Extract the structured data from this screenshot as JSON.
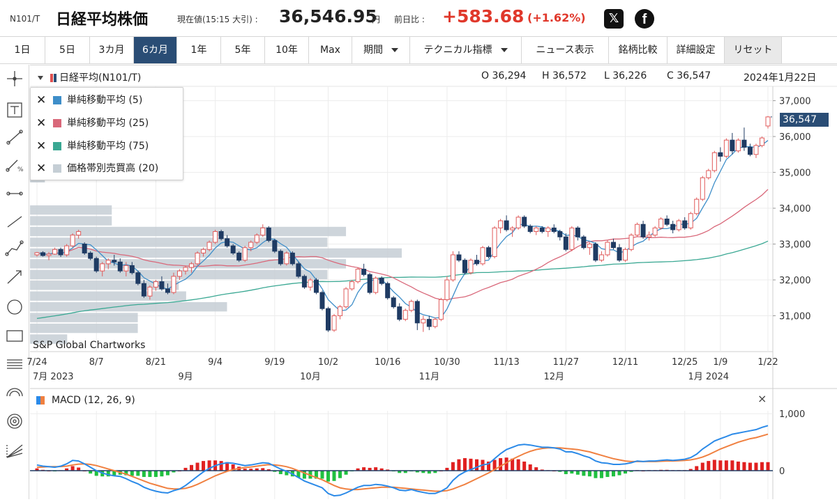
{
  "header": {
    "ticker": "N101/T",
    "title": "日経平均株価",
    "current_label": "現在値(15:15 大引) :",
    "current_value": "36,546.95",
    "current_unit": "円",
    "change_label": "前日比 :",
    "change_value": "+583.68",
    "change_pct": "(+1.62%)",
    "x_icon": "x-logo-icon",
    "fb_icon": "facebook-icon"
  },
  "toolbar": {
    "ranges": [
      "1日",
      "5日",
      "3カ月",
      "6カ月",
      "1年",
      "5年",
      "10年",
      "Max"
    ],
    "active": "6カ月",
    "period_label": "期間",
    "technical_label": "テクニカル指標",
    "news_label": "ニュース表示",
    "compare_label": "銘柄比較",
    "settings_label": "詳細設定",
    "reset_label": "リセット"
  },
  "tools": [
    "crosshair-icon",
    "text-tool-icon",
    "trendline-icon",
    "percent-line-icon",
    "horizontal-ray-icon",
    "line-segment-icon",
    "multi-point-line-icon",
    "arrow-line-icon",
    "circle-icon",
    "rectangle-icon",
    "fibonacci-icon",
    "arc-icon",
    "target-icon",
    "fan-icon"
  ],
  "chart": {
    "series_title": "日経平均(N101/T)",
    "ohlc": {
      "o": "O 36,294",
      "h": "H 36,572",
      "l": "L 36,226",
      "c": "C 36,547"
    },
    "date": "2024年1月22日",
    "credit": "S&P Global Chartworks",
    "last_price_tag": "36,547",
    "legend": [
      {
        "label": "単純移動平均 (5)",
        "color": "#3e8ec9"
      },
      {
        "label": "単純移動平均 (25)",
        "color": "#d9687a"
      },
      {
        "label": "単純移動平均 (75)",
        "color": "#3aa893"
      },
      {
        "label": "価格帯別売買高 (20)",
        "color": "#c5ced5"
      }
    ],
    "macd_title": "MACD (12, 26, 9)",
    "macd_close": "×"
  },
  "chart_data": {
    "type": "candlestick",
    "x_tick_labels": [
      "7/24",
      "8/7",
      "8/21",
      "9/4",
      "9/19",
      "10/2",
      "10/16",
      "10/30",
      "11/13",
      "11/27",
      "12/11",
      "12/25",
      "1/9",
      "1/22"
    ],
    "month_labels": [
      "7月 2023",
      "9月",
      "10月",
      "11月",
      "12月",
      "1月 2024"
    ],
    "y_ticks": [
      31000,
      32000,
      33000,
      34000,
      35000,
      36000,
      37000
    ],
    "y_tick_labels": [
      "31,000",
      "32,000",
      "33,000",
      "34,000",
      "35,000",
      "36,000",
      "37,000"
    ],
    "ylim": [
      30000,
      37400
    ],
    "last_close": 36547,
    "candles_count": 124,
    "candles_note": "OHLC values approximated from the chart",
    "candles": [
      [
        32700,
        32780,
        32650,
        32760
      ],
      [
        32760,
        32800,
        32650,
        32680
      ],
      [
        32680,
        32780,
        32550,
        32720
      ],
      [
        32720,
        32900,
        32700,
        32850
      ],
      [
        32850,
        32900,
        32640,
        32700
      ],
      [
        32700,
        33000,
        32650,
        32950
      ],
      [
        32950,
        33300,
        32900,
        33250
      ],
      [
        33250,
        33400,
        33150,
        33350
      ],
      [
        33000,
        33050,
        32700,
        32750
      ],
      [
        32750,
        32800,
        32550,
        32600
      ],
      [
        32600,
        32650,
        32200,
        32250
      ],
      [
        32250,
        32500,
        32100,
        32450
      ],
      [
        32450,
        32600,
        32300,
        32550
      ],
      [
        32550,
        32700,
        32400,
        32500
      ],
      [
        32500,
        32600,
        32200,
        32250
      ],
      [
        32250,
        32500,
        32100,
        32400
      ],
      [
        32400,
        32500,
        32150,
        32200
      ],
      [
        32200,
        32250,
        31850,
        31900
      ],
      [
        31900,
        32000,
        31500,
        31550
      ],
      [
        31550,
        31850,
        31450,
        31800
      ],
      [
        31800,
        32000,
        31700,
        31950
      ],
      [
        31950,
        32100,
        31700,
        31750
      ],
      [
        31750,
        31900,
        31600,
        31650
      ],
      [
        31650,
        32200,
        31600,
        32100
      ],
      [
        32100,
        32300,
        32000,
        32250
      ],
      [
        32250,
        32400,
        32150,
        32350
      ],
      [
        32350,
        32500,
        32200,
        32450
      ],
      [
        32450,
        32800,
        32400,
        32750
      ],
      [
        32750,
        32900,
        32650,
        32850
      ],
      [
        32850,
        33100,
        32800,
        33050
      ],
      [
        33050,
        33400,
        33000,
        33350
      ],
      [
        33350,
        33400,
        33100,
        33150
      ],
      [
        33150,
        33250,
        32900,
        32950
      ],
      [
        32950,
        33000,
        32700,
        32750
      ],
      [
        32750,
        32800,
        32500,
        32550
      ],
      [
        32550,
        32950,
        32500,
        32900
      ],
      [
        32900,
        33100,
        32800,
        33050
      ],
      [
        33050,
        33300,
        33000,
        33250
      ],
      [
        33250,
        33550,
        33200,
        33450
      ],
      [
        33450,
        33500,
        33050,
        33100
      ],
      [
        33100,
        33150,
        32750,
        32800
      ],
      [
        32800,
        32850,
        32400,
        32450
      ],
      [
        32450,
        32800,
        32400,
        32750
      ],
      [
        32750,
        32800,
        32400,
        32450
      ],
      [
        32450,
        32500,
        32050,
        32100
      ],
      [
        32100,
        32150,
        31750,
        31800
      ],
      [
        31800,
        32050,
        31700,
        32000
      ],
      [
        32000,
        32050,
        31600,
        31650
      ],
      [
        31650,
        31700,
        31150,
        31200
      ],
      [
        31200,
        31250,
        30550,
        30600
      ],
      [
        30600,
        31050,
        30550,
        31000
      ],
      [
        31000,
        31300,
        30900,
        31250
      ],
      [
        31250,
        31800,
        31200,
        31750
      ],
      [
        31750,
        32000,
        31700,
        31950
      ],
      [
        31950,
        32350,
        31900,
        32300
      ],
      [
        32300,
        32450,
        32100,
        32150
      ],
      [
        32150,
        32200,
        31600,
        31650
      ],
      [
        31650,
        32100,
        31600,
        32050
      ],
      [
        32050,
        32100,
        31850,
        31900
      ],
      [
        31900,
        31950,
        31450,
        31500
      ],
      [
        31500,
        31550,
        31200,
        31250
      ],
      [
        31250,
        31350,
        30850,
        30900
      ],
      [
        30900,
        31200,
        30850,
        31150
      ],
      [
        31150,
        31450,
        31100,
        31400
      ],
      [
        31400,
        31450,
        30600,
        30800
      ],
      [
        30800,
        31000,
        30550,
        30900
      ],
      [
        30900,
        31000,
        30600,
        30700
      ],
      [
        30700,
        30950,
        30650,
        30900
      ],
      [
        30900,
        31500,
        30850,
        31450
      ],
      [
        31450,
        32100,
        31400,
        32000
      ],
      [
        32000,
        32800,
        31950,
        32700
      ],
      [
        32700,
        32800,
        32500,
        32550
      ],
      [
        32550,
        32600,
        32150,
        32200
      ],
      [
        32200,
        32600,
        32150,
        32550
      ],
      [
        32550,
        32700,
        32400,
        32450
      ],
      [
        32450,
        32950,
        32400,
        32900
      ],
      [
        32900,
        32950,
        32600,
        32650
      ],
      [
        32650,
        33500,
        32600,
        33450
      ],
      [
        33450,
        33700,
        33300,
        33650
      ],
      [
        33650,
        33800,
        33350,
        33400
      ],
      [
        33400,
        33500,
        33200,
        33450
      ],
      [
        33450,
        33800,
        33400,
        33750
      ],
      [
        33750,
        33800,
        33450,
        33500
      ],
      [
        33500,
        33550,
        33300,
        33350
      ],
      [
        33350,
        33500,
        33250,
        33450
      ],
      [
        33450,
        33500,
        33300,
        33350
      ],
      [
        33350,
        33500,
        33200,
        33450
      ],
      [
        33450,
        33550,
        33300,
        33350
      ],
      [
        33350,
        33400,
        33100,
        33200
      ],
      [
        33200,
        33300,
        32800,
        32850
      ],
      [
        32850,
        33500,
        32800,
        33450
      ],
      [
        33450,
        33500,
        33100,
        33200
      ],
      [
        33200,
        33250,
        32850,
        32900
      ],
      [
        32900,
        33050,
        32700,
        33000
      ],
      [
        33000,
        33050,
        32500,
        32550
      ],
      [
        32550,
        32800,
        32500,
        32700
      ],
      [
        32700,
        33100,
        32650,
        33050
      ],
      [
        33050,
        33150,
        32850,
        32900
      ],
      [
        32900,
        33000,
        32500,
        32550
      ],
      [
        32550,
        32900,
        32500,
        32850
      ],
      [
        32850,
        33300,
        32800,
        33250
      ],
      [
        33250,
        33600,
        33200,
        33550
      ],
      [
        33550,
        33650,
        33150,
        33200
      ],
      [
        33200,
        33350,
        33100,
        33250
      ],
      [
        33250,
        33500,
        33200,
        33450
      ],
      [
        33450,
        33750,
        33400,
        33700
      ],
      [
        33700,
        33800,
        33500,
        33550
      ],
      [
        33550,
        33650,
        33300,
        33400
      ],
      [
        33400,
        33700,
        33350,
        33650
      ],
      [
        33650,
        33750,
        33400,
        33450
      ],
      [
        33450,
        33900,
        33400,
        33850
      ],
      [
        33850,
        34300,
        33800,
        34250
      ],
      [
        34250,
        34900,
        34200,
        34850
      ],
      [
        34850,
        35100,
        34800,
        35050
      ],
      [
        35050,
        35600,
        35000,
        35550
      ],
      [
        35550,
        35700,
        35300,
        35450
      ],
      [
        35450,
        35950,
        35400,
        35900
      ],
      [
        35900,
        36100,
        35500,
        35600
      ],
      [
        35600,
        35950,
        35550,
        35900
      ],
      [
        35900,
        36250,
        35600,
        35700
      ],
      [
        35700,
        35800,
        35450,
        35500
      ],
      [
        35500,
        35800,
        35400,
        35750
      ],
      [
        35750,
        36000,
        35700,
        35960
      ],
      [
        36294,
        36572,
        36226,
        36547
      ]
    ],
    "sma5_color": "#3e8ec9",
    "sma25_color": "#d9687a",
    "sma75_color": "#3aa893",
    "volume_by_price": [
      {
        "price_from": 30200,
        "price_to": 30500,
        "volume": 0.1
      },
      {
        "price_from": 30500,
        "price_to": 30800,
        "volume": 0.29
      },
      {
        "price_from": 30800,
        "price_to": 31100,
        "volume": 0.29
      },
      {
        "price_from": 31100,
        "price_to": 31400,
        "volume": 0.53
      },
      {
        "price_from": 31400,
        "price_to": 31700,
        "volume": 0.42
      },
      {
        "price_from": 31700,
        "price_to": 32000,
        "volume": 0.4
      },
      {
        "price_from": 32000,
        "price_to": 32300,
        "volume": 0.8
      },
      {
        "price_from": 32300,
        "price_to": 32600,
        "volume": 0.85
      },
      {
        "price_from": 32600,
        "price_to": 32900,
        "volume": 1.0
      },
      {
        "price_from": 32900,
        "price_to": 33200,
        "volume": 0.8
      },
      {
        "price_from": 33200,
        "price_to": 33500,
        "volume": 0.85
      },
      {
        "price_from": 33500,
        "price_to": 33800,
        "volume": 0.22
      },
      {
        "price_from": 33800,
        "price_to": 34100,
        "volume": 0.22
      },
      {
        "price_from": 34700,
        "price_to": 35000,
        "volume": 0.04
      }
    ],
    "macd": {
      "ylim": [
        -500,
        1050
      ],
      "y_ticks": [
        0,
        1000
      ],
      "y_tick_labels": [
        "0",
        "1,000"
      ],
      "macd_color": "#2b8ae8",
      "signal_color": "#f08040",
      "hist_pos_color": "#e02020",
      "hist_neg_color": "#20c040",
      "macd_line": [
        100,
        80,
        70,
        60,
        80,
        120,
        180,
        170,
        120,
        60,
        0,
        -40,
        -70,
        -90,
        -100,
        -140,
        -190,
        -230,
        -290,
        -330,
        -360,
        -380,
        -390,
        -350,
        -320,
        -260,
        -180,
        -100,
        -20,
        40,
        90,
        120,
        140,
        130,
        110,
        90,
        100,
        120,
        140,
        130,
        80,
        30,
        -10,
        -60,
        -120,
        -180,
        -220,
        -260,
        -300,
        -400,
        -440,
        -430,
        -390,
        -340,
        -290,
        -260,
        -260,
        -240,
        -250,
        -270,
        -300,
        -340,
        -350,
        -330,
        -360,
        -380,
        -400,
        -400,
        -360,
        -300,
        -170,
        -80,
        -20,
        20,
        60,
        100,
        120,
        210,
        300,
        370,
        410,
        450,
        460,
        450,
        430,
        410,
        410,
        400,
        380,
        330,
        330,
        300,
        260,
        230,
        170,
        140,
        130,
        110,
        110,
        120,
        140,
        170,
        160,
        170,
        170,
        180,
        190,
        180,
        190,
        200,
        230,
        290,
        380,
        450,
        520,
        560,
        600,
        640,
        660,
        680,
        700,
        720,
        760,
        790
      ],
      "signal_line": [
        60,
        65,
        70,
        70,
        72,
        80,
        100,
        115,
        120,
        110,
        90,
        60,
        30,
        0,
        -30,
        -60,
        -100,
        -140,
        -180,
        -220,
        -250,
        -280,
        -310,
        -320,
        -320,
        -310,
        -280,
        -240,
        -190,
        -140,
        -90,
        -50,
        -10,
        20,
        40,
        55,
        65,
        80,
        95,
        105,
        100,
        90,
        70,
        40,
        0,
        -40,
        -80,
        -120,
        -160,
        -210,
        -260,
        -300,
        -320,
        -330,
        -330,
        -320,
        -310,
        -300,
        -290,
        -290,
        -290,
        -300,
        -310,
        -320,
        -330,
        -340,
        -350,
        -360,
        -360,
        -350,
        -320,
        -280,
        -240,
        -190,
        -140,
        -90,
        -40,
        20,
        80,
        140,
        200,
        250,
        300,
        340,
        370,
        390,
        400,
        400,
        400,
        390,
        380,
        370,
        350,
        330,
        300,
        270,
        240,
        210,
        190,
        170,
        160,
        160,
        160,
        160,
        160,
        165,
        170,
        170,
        175,
        180,
        190,
        210,
        240,
        280,
        330,
        380,
        420,
        460,
        500,
        530,
        560,
        580,
        610,
        640
      ],
      "histogram": [
        40,
        15,
        0,
        -10,
        8,
        40,
        80,
        55,
        0,
        -50,
        -90,
        -100,
        -100,
        -90,
        -70,
        -80,
        -90,
        -90,
        -110,
        -110,
        -110,
        -100,
        -80,
        -30,
        0,
        50,
        100,
        140,
        170,
        180,
        180,
        170,
        150,
        110,
        70,
        35,
        35,
        40,
        45,
        25,
        -20,
        -60,
        -80,
        -100,
        -120,
        -140,
        -140,
        -140,
        -140,
        -190,
        -180,
        -130,
        -70,
        -10,
        40,
        60,
        50,
        60,
        40,
        20,
        -10,
        -40,
        -40,
        -10,
        -30,
        -40,
        -50,
        -40,
        0,
        50,
        150,
        200,
        220,
        210,
        200,
        190,
        160,
        190,
        220,
        230,
        210,
        200,
        160,
        110,
        60,
        20,
        10,
        0,
        -20,
        -60,
        -50,
        -70,
        -90,
        -100,
        -130,
        -130,
        -110,
        -100,
        -80,
        -50,
        -20,
        10,
        0,
        10,
        10,
        15,
        15,
        10,
        10,
        10,
        30,
        80,
        140,
        170,
        190,
        180,
        180,
        180,
        160,
        150,
        140,
        140,
        150,
        150
      ]
    }
  }
}
